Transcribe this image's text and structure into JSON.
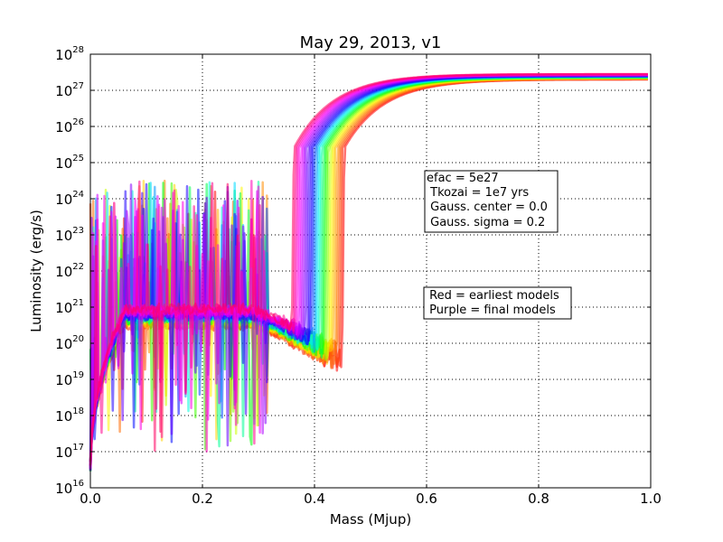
{
  "chart_data": {
    "type": "line",
    "title": "May 29, 2013, v1",
    "xlabel": "Mass (Mjup)",
    "ylabel": "Luminosity (erg/s)",
    "xlim": [
      0.0,
      1.0
    ],
    "ylim": [
      1e+16,
      1e+28
    ],
    "yscale": "log",
    "grid": true,
    "x_ticks": [
      "0.0",
      "0.2",
      "0.4",
      "0.6",
      "0.8",
      "1.0"
    ],
    "y_ticks": [
      {
        "base": "10",
        "exp": "16"
      },
      {
        "base": "10",
        "exp": "17"
      },
      {
        "base": "10",
        "exp": "18"
      },
      {
        "base": "10",
        "exp": "19"
      },
      {
        "base": "10",
        "exp": "20"
      },
      {
        "base": "10",
        "exp": "21"
      },
      {
        "base": "10",
        "exp": "22"
      },
      {
        "base": "10",
        "exp": "23"
      },
      {
        "base": "10",
        "exp": "24"
      },
      {
        "base": "10",
        "exp": "25"
      },
      {
        "base": "10",
        "exp": "26"
      },
      {
        "base": "10",
        "exp": "27"
      },
      {
        "base": "10",
        "exp": "28"
      }
    ],
    "color_ramp": [
      "#ff0000",
      "#ff8000",
      "#ffff00",
      "#00ff00",
      "#00ffff",
      "#0000ff",
      "#8000ff",
      "#ff00ff",
      "#ff0060"
    ],
    "series_family": {
      "count": 30,
      "plateau_log_lum_start": 20.5,
      "plateau_log_lum_end": 20.95,
      "transition_mass_first": 0.45,
      "transition_mass_last": 0.36,
      "final_log_lum_first": 27.3,
      "final_log_lum_last": 27.45,
      "noisy_region_mass_max": 0.32,
      "noise_spike_log_max": 24.5,
      "noise_dip_log_min": 17.0
    },
    "annotations": [
      {
        "lines": [
          "efac = 5e27",
          " Tkozai = 1e7 yrs",
          " Gauss. center = 0.0",
          " Gauss. sigma = 0.2"
        ]
      },
      {
        "lines": [
          " Red = earliest models",
          " Purple = final models"
        ]
      }
    ]
  }
}
